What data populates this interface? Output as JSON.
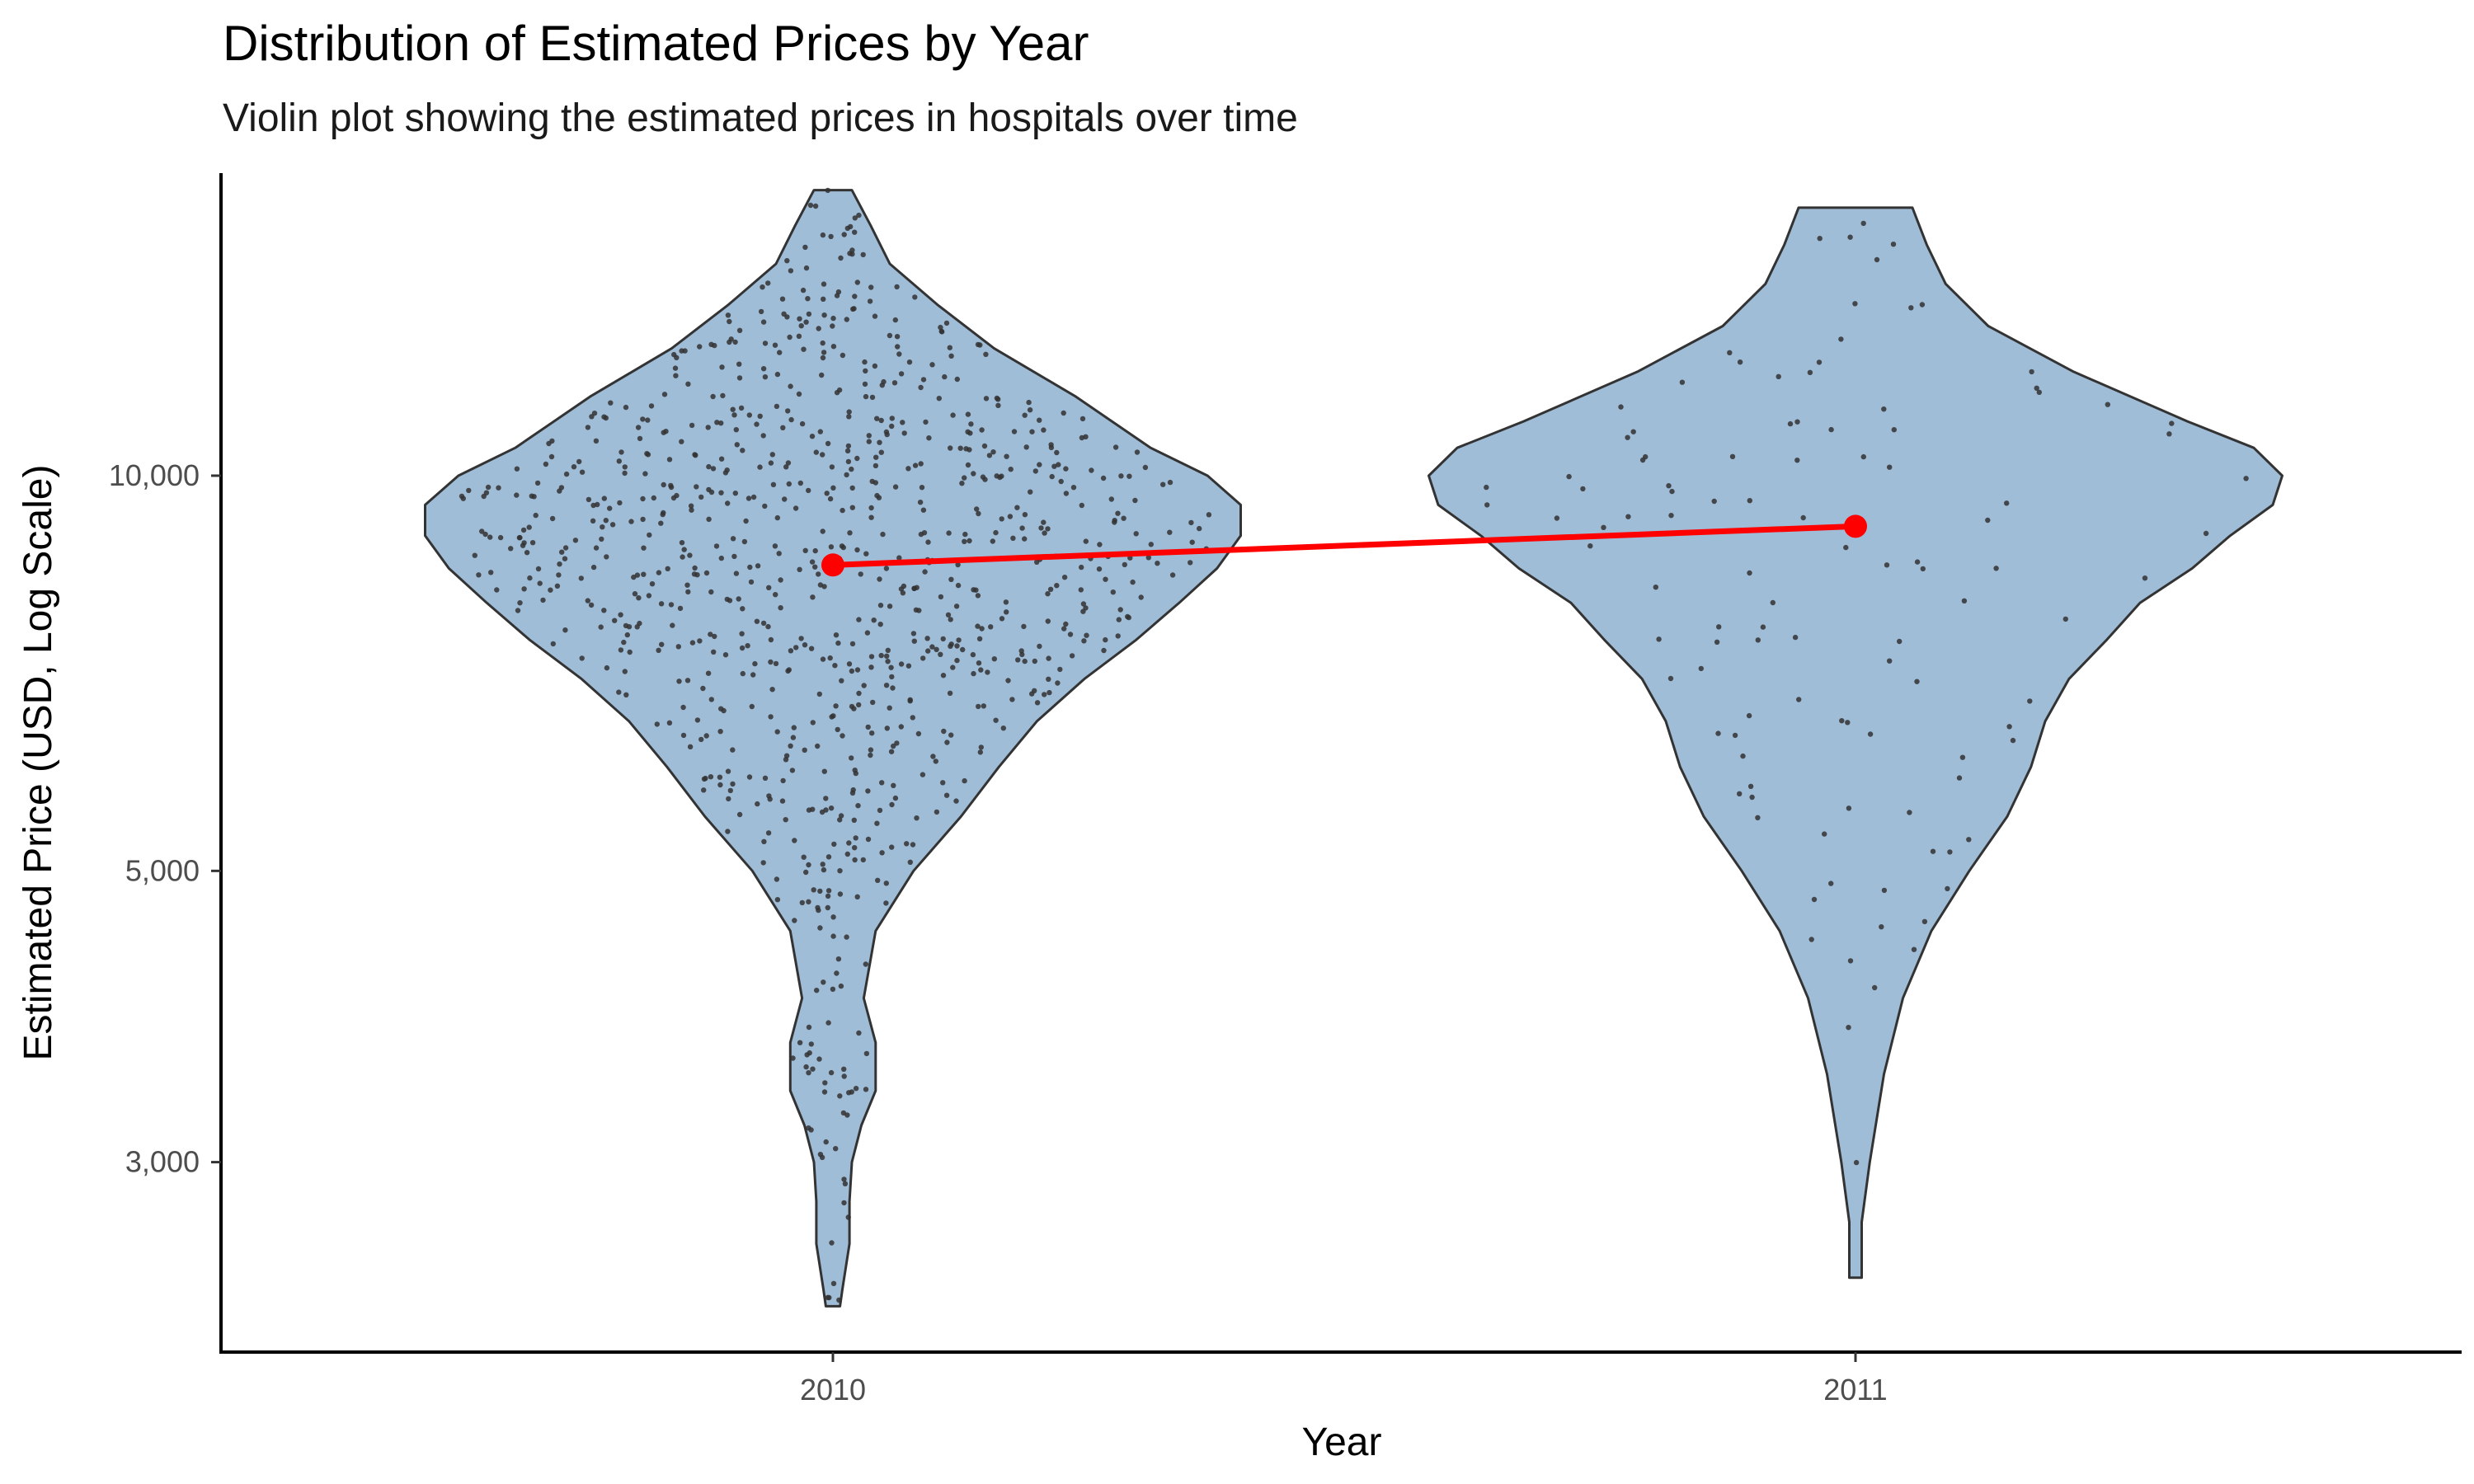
{
  "chart_data": {
    "type": "violin",
    "title": "Distribution of Estimated Prices by Year",
    "subtitle": "Violin plot showing the estimated prices in hospitals over time",
    "xlabel": "Year",
    "ylabel": "Estimated Price (USD, Log Scale)",
    "y_scale": "log",
    "ylim": [
      2150,
      17000
    ],
    "y_ticks": [
      {
        "value": 3000,
        "label": "3,000"
      },
      {
        "value": 5000,
        "label": "5,000"
      },
      {
        "value": 10000,
        "label": "10,000"
      }
    ],
    "categories": [
      "2010",
      "2011"
    ],
    "fill_color": "#a0bdd8",
    "outline_color": "#333333",
    "point_color": "#333333",
    "mean_line_color": "#ff0000",
    "violins": [
      {
        "category": "2010",
        "min": 2330,
        "max": 16500,
        "profile": [
          [
            16500,
            0.04
          ],
          [
            15500,
            0.08
          ],
          [
            14500,
            0.12
          ],
          [
            13500,
            0.22
          ],
          [
            12500,
            0.34
          ],
          [
            11500,
            0.51
          ],
          [
            10500,
            0.67
          ],
          [
            10000,
            0.79
          ],
          [
            9500,
            0.86
          ],
          [
            9000,
            0.86
          ],
          [
            8500,
            0.81
          ],
          [
            8000,
            0.73
          ],
          [
            7500,
            0.64
          ],
          [
            7000,
            0.53
          ],
          [
            6500,
            0.43
          ],
          [
            6000,
            0.35
          ],
          [
            5500,
            0.27
          ],
          [
            5000,
            0.17
          ],
          [
            4500,
            0.09
          ],
          [
            4000,
            0.065
          ],
          [
            3700,
            0.09
          ],
          [
            3400,
            0.09
          ],
          [
            3200,
            0.06
          ],
          [
            3000,
            0.04
          ],
          [
            2800,
            0.035
          ],
          [
            2600,
            0.035
          ],
          [
            2400,
            0.02
          ],
          [
            2330,
            0.015
          ]
        ],
        "n_points": 900,
        "mean": 8550
      },
      {
        "category": "2011",
        "min": 2450,
        "max": 16000,
        "profile": [
          [
            16000,
            0.12
          ],
          [
            15000,
            0.15
          ],
          [
            14000,
            0.19
          ],
          [
            13000,
            0.28
          ],
          [
            12000,
            0.46
          ],
          [
            11000,
            0.7
          ],
          [
            10500,
            0.84
          ],
          [
            10000,
            0.9
          ],
          [
            9500,
            0.88
          ],
          [
            9000,
            0.79
          ],
          [
            8500,
            0.71
          ],
          [
            8000,
            0.6
          ],
          [
            7500,
            0.53
          ],
          [
            7000,
            0.45
          ],
          [
            6500,
            0.4
          ],
          [
            6000,
            0.37
          ],
          [
            5500,
            0.32
          ],
          [
            5000,
            0.24
          ],
          [
            4500,
            0.16
          ],
          [
            4000,
            0.1
          ],
          [
            3500,
            0.06
          ],
          [
            3000,
            0.03
          ],
          [
            2700,
            0.013
          ],
          [
            2450,
            0.013
          ]
        ],
        "n_points": 110,
        "mean": 9150
      }
    ]
  }
}
